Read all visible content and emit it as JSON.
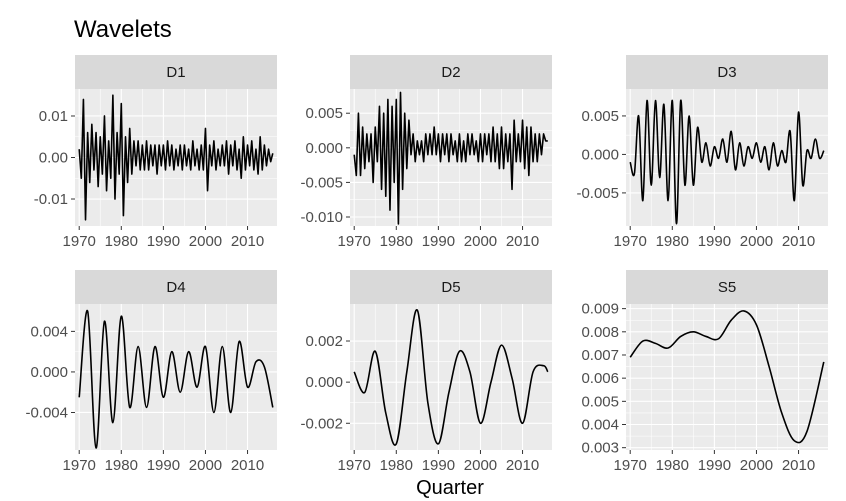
{
  "chart_data": {
    "type": "line",
    "title": "Wavelets",
    "xlabel": "Quarter",
    "ylabel": "",
    "grid": true,
    "facets": [
      {
        "name": "D1",
        "xlim": [
          1969,
          2017
        ],
        "ylim": [
          -0.0165,
          0.0165
        ],
        "xticks": [
          1970,
          1980,
          1990,
          2000,
          2010
        ],
        "yticks": [
          -0.01,
          0.0,
          0.01
        ],
        "ytick_labels": [
          "-0.01",
          "0.00",
          "0.01"
        ],
        "x": [
          1970,
          1970.5,
          1971,
          1971.5,
          1972,
          1972.5,
          1973,
          1973.5,
          1974,
          1974.5,
          1975,
          1975.5,
          1976,
          1976.5,
          1977,
          1977.5,
          1978,
          1978.5,
          1979,
          1979.5,
          1980,
          1980.5,
          1981,
          1981.5,
          1982,
          1982.5,
          1983,
          1983.5,
          1984,
          1984.5,
          1985,
          1985.5,
          1986,
          1986.5,
          1987,
          1987.5,
          1988,
          1988.5,
          1989,
          1989.5,
          1990,
          1990.5,
          1991,
          1991.5,
          1992,
          1992.5,
          1993,
          1993.5,
          1994,
          1994.5,
          1995,
          1995.5,
          1996,
          1996.5,
          1997,
          1997.5,
          1998,
          1998.5,
          1999,
          1999.5,
          2000,
          2000.5,
          2001,
          2001.5,
          2002,
          2002.5,
          2003,
          2003.5,
          2004,
          2004.5,
          2005,
          2005.5,
          2006,
          2006.5,
          2007,
          2007.5,
          2008,
          2008.5,
          2009,
          2009.5,
          2010,
          2010.5,
          2011,
          2011.5,
          2012,
          2012.5,
          2013,
          2013.5,
          2014,
          2014.5,
          2015,
          2015.5,
          2016
        ],
        "y": [
          0.002,
          -0.005,
          0.014,
          -0.015,
          0.006,
          -0.006,
          0.008,
          -0.003,
          0.006,
          -0.007,
          0.005,
          -0.004,
          0.01,
          -0.008,
          0.004,
          -0.005,
          0.015,
          -0.01,
          0.006,
          -0.004,
          0.013,
          -0.014,
          0.005,
          -0.006,
          0.007,
          -0.004,
          0.004,
          -0.002,
          0.004,
          -0.003,
          0.003,
          -0.003,
          0.004,
          -0.003,
          0.003,
          -0.002,
          0.003,
          -0.004,
          0.003,
          -0.002,
          0.003,
          -0.003,
          0.004,
          -0.002,
          0.003,
          -0.003,
          0.002,
          -0.002,
          0.003,
          -0.003,
          0.003,
          -0.002,
          0.002,
          -0.003,
          0.004,
          -0.002,
          0.002,
          -0.003,
          0.003,
          -0.003,
          0.007,
          -0.008,
          0.003,
          -0.002,
          0.004,
          -0.003,
          0.002,
          -0.002,
          0.003,
          -0.002,
          0.004,
          -0.004,
          0.003,
          -0.002,
          0.004,
          -0.003,
          0.002,
          -0.005,
          0.005,
          -0.003,
          0.003,
          -0.002,
          0.004,
          -0.003,
          0.002,
          -0.004,
          0.005,
          -0.003,
          0.003,
          -0.002,
          0.002,
          -0.001,
          0.001
        ]
      },
      {
        "name": "D2",
        "xlim": [
          1969,
          2017
        ],
        "ylim": [
          -0.0113,
          0.0085
        ],
        "xticks": [
          1970,
          1980,
          1990,
          2000,
          2010
        ],
        "yticks": [
          -0.01,
          -0.005,
          0.0,
          0.005
        ],
        "ytick_labels": [
          "-0.010",
          "-0.005",
          "0.000",
          "0.005"
        ],
        "x": [
          1970,
          1970.5,
          1971,
          1971.5,
          1972,
          1972.5,
          1973,
          1973.5,
          1974,
          1974.5,
          1975,
          1975.5,
          1976,
          1976.5,
          1977,
          1977.5,
          1978,
          1978.5,
          1979,
          1979.5,
          1980,
          1980.5,
          1981,
          1981.5,
          1982,
          1982.5,
          1983,
          1983.5,
          1984,
          1984.5,
          1985,
          1985.5,
          1986,
          1986.5,
          1987,
          1987.5,
          1988,
          1988.5,
          1989,
          1989.5,
          1990,
          1990.5,
          1991,
          1991.5,
          1992,
          1992.5,
          1993,
          1993.5,
          1994,
          1994.5,
          1995,
          1995.5,
          1996,
          1996.5,
          1997,
          1997.5,
          1998,
          1998.5,
          1999,
          1999.5,
          2000,
          2000.5,
          2001,
          2001.5,
          2002,
          2002.5,
          2003,
          2003.5,
          2004,
          2004.5,
          2005,
          2005.5,
          2006,
          2006.5,
          2007,
          2007.5,
          2008,
          2008.5,
          2009,
          2009.5,
          2010,
          2010.5,
          2011,
          2011.5,
          2012,
          2012.5,
          2013,
          2013.5,
          2014,
          2014.5,
          2015,
          2015.5,
          2016
        ],
        "y": [
          -0.001,
          -0.004,
          0.005,
          -0.004,
          0.003,
          -0.003,
          0.002,
          -0.002,
          0.002,
          -0.005,
          0.003,
          -0.002,
          0.006,
          -0.006,
          0.005,
          -0.007,
          0.007,
          -0.009,
          0.006,
          -0.005,
          0.007,
          -0.011,
          0.008,
          -0.006,
          0.005,
          -0.003,
          0.004,
          -0.001,
          0.002,
          -0.002,
          0.001,
          -0.001,
          0.001,
          -0.002,
          0.002,
          -0.001,
          0.002,
          -0.001,
          0.003,
          -0.001,
          0.002,
          -0.002,
          0.002,
          -0.001,
          0.002,
          -0.002,
          0.002,
          -0.001,
          0.001,
          -0.002,
          0.002,
          -0.002,
          0.001,
          -0.002,
          0.002,
          -0.001,
          0.002,
          -0.001,
          0.001,
          -0.002,
          0.002,
          -0.002,
          0.002,
          -0.001,
          0.002,
          -0.002,
          0.003,
          -0.002,
          0.002,
          -0.003,
          0.003,
          -0.003,
          0.002,
          -0.002,
          0.002,
          -0.006,
          0.004,
          -0.002,
          0.002,
          -0.002,
          0.004,
          -0.003,
          0.003,
          -0.004,
          0.003,
          -0.002,
          0.002,
          -0.002,
          0.002,
          -0.001,
          0.002,
          0.001,
          0.001
        ]
      },
      {
        "name": "D3",
        "xlim": [
          1969,
          2017
        ],
        "ylim": [
          -0.0093,
          0.0085
        ],
        "xticks": [
          1970,
          1980,
          1990,
          2000,
          2010
        ],
        "yticks": [
          -0.005,
          0.0,
          0.005
        ],
        "ytick_labels": [
          "-0.005",
          "0.000",
          "0.005"
        ],
        "x": [
          1970,
          1971,
          1972,
          1973,
          1974,
          1975,
          1976,
          1977,
          1978,
          1979,
          1980,
          1981,
          1982,
          1983,
          1984,
          1985,
          1986,
          1987,
          1988,
          1989,
          1990,
          1991,
          1992,
          1993,
          1994,
          1995,
          1996,
          1997,
          1998,
          1999,
          2000,
          2001,
          2002,
          2003,
          2004,
          2005,
          2006,
          2007,
          2008,
          2009,
          2010,
          2011,
          2012,
          2013,
          2014,
          2015,
          2016
        ],
        "y": [
          -0.001,
          -0.0025,
          0.005,
          -0.006,
          0.007,
          -0.004,
          0.007,
          -0.003,
          0.0065,
          -0.006,
          0.007,
          -0.009,
          0.007,
          -0.004,
          0.005,
          -0.004,
          0.0035,
          -0.001,
          0.0015,
          -0.0015,
          0.001,
          -0.0005,
          0.002,
          -0.001,
          0.003,
          -0.002,
          0.0015,
          -0.0015,
          0.001,
          -0.0005,
          0.0015,
          -0.001,
          0.001,
          -0.002,
          0.0015,
          -0.0015,
          0.0005,
          -0.001,
          0.003,
          -0.006,
          0.0055,
          -0.004,
          0.0005,
          -0.0005,
          0.002,
          -0.0005,
          0.0005
        ]
      },
      {
        "name": "D4",
        "xlim": [
          1969,
          2017
        ],
        "ylim": [
          -0.0077,
          0.0067
        ],
        "xticks": [
          1970,
          1980,
          1990,
          2000,
          2010
        ],
        "yticks": [
          -0.004,
          0.0,
          0.004
        ],
        "ytick_labels": [
          "-0.004",
          "0.000",
          "0.004"
        ],
        "x": [
          1970,
          1972,
          1974,
          1976,
          1978,
          1980,
          1982,
          1984,
          1986,
          1988,
          1990,
          1992,
          1994,
          1996,
          1998,
          2000,
          2002,
          2004,
          2006,
          2008,
          2010,
          2012,
          2014,
          2016
        ],
        "y": [
          -0.0025,
          0.006,
          -0.0075,
          0.005,
          -0.005,
          0.0055,
          -0.0035,
          0.0025,
          -0.0035,
          0.0025,
          -0.0025,
          0.002,
          -0.002,
          0.002,
          -0.0015,
          0.0025,
          -0.004,
          0.0025,
          -0.004,
          0.003,
          -0.0015,
          0.001,
          0.0005,
          -0.0035
        ]
      },
      {
        "name": "D5",
        "xlim": [
          1969,
          2017
        ],
        "ylim": [
          -0.0033,
          0.0038
        ],
        "xticks": [
          1970,
          1980,
          1990,
          2000,
          2010
        ],
        "yticks": [
          -0.002,
          0.0,
          0.002
        ],
        "ytick_labels": [
          "-0.002",
          "0.000",
          "0.002"
        ],
        "x": [
          1970,
          1972.5,
          1975,
          1977.5,
          1980,
          1982.5,
          1985,
          1987.5,
          1990,
          1992.5,
          1995,
          1997.5,
          2000,
          2002.5,
          2005,
          2007.5,
          2010,
          2012.5,
          2015,
          2016
        ],
        "y": [
          0.0005,
          -0.0005,
          0.0015,
          -0.0015,
          -0.003,
          0.0005,
          0.0035,
          -0.001,
          -0.003,
          -0.0005,
          0.0015,
          0.0005,
          -0.002,
          0.0,
          0.0018,
          0.0002,
          -0.002,
          0.0005,
          0.0008,
          0.0005
        ]
      },
      {
        "name": "S5",
        "xlim": [
          1969,
          2017
        ],
        "ylim": [
          0.0029,
          0.0092
        ],
        "xticks": [
          1970,
          1980,
          1990,
          2000,
          2010
        ],
        "yticks": [
          0.003,
          0.004,
          0.005,
          0.006,
          0.007,
          0.008,
          0.009
        ],
        "ytick_labels": [
          "0.003",
          "0.004",
          "0.005",
          "0.006",
          "0.007",
          "0.008",
          "0.009"
        ],
        "x": [
          1970,
          1973,
          1976,
          1979,
          1982,
          1985,
          1988,
          1991,
          1994,
          1997,
          2000,
          2003,
          2006,
          2009,
          2012,
          2016
        ],
        "y": [
          0.0069,
          0.0076,
          0.0075,
          0.0073,
          0.0078,
          0.008,
          0.0078,
          0.0077,
          0.0085,
          0.0089,
          0.0083,
          0.0065,
          0.0045,
          0.0033,
          0.0037,
          0.0067
        ]
      }
    ]
  }
}
